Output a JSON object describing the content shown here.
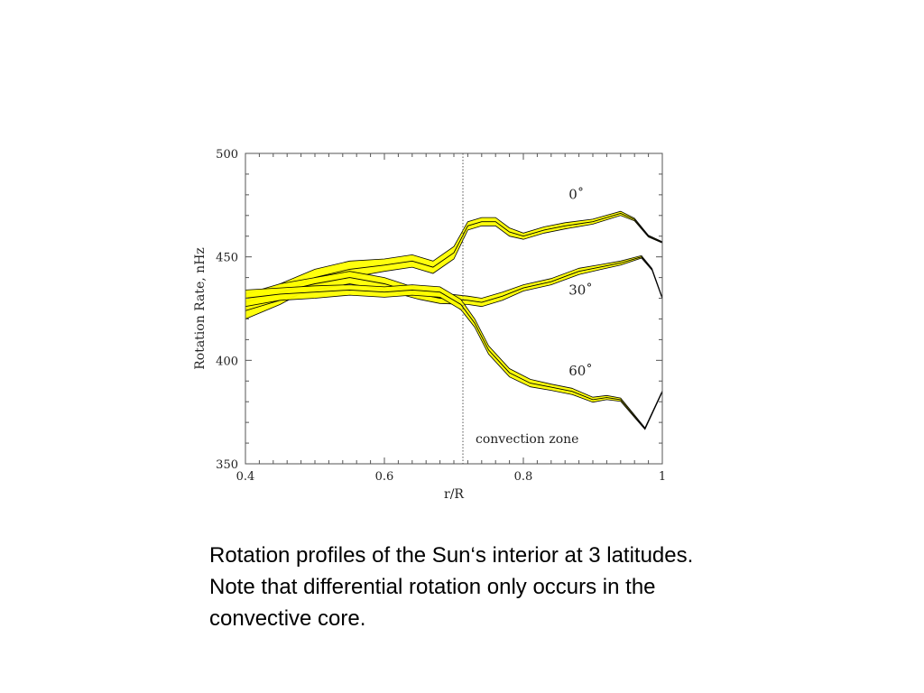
{
  "chart_data": {
    "type": "line",
    "title": "",
    "xlabel": "r/R",
    "ylabel": "Rotation Rate, nHz",
    "xlim": [
      0.4,
      1.0
    ],
    "ylim": [
      350,
      500
    ],
    "xticks": [
      0.4,
      0.6,
      0.8,
      1
    ],
    "xtick_labels": [
      "0.4",
      "0.6",
      "0.8",
      "1"
    ],
    "yticks": [
      350,
      400,
      450,
      500
    ],
    "ytick_labels": [
      "350",
      "400",
      "450",
      "500"
    ],
    "grid": false,
    "band_color": "#ffff00",
    "line_color": "#000000",
    "series": [
      {
        "name": "0˚",
        "x": [
          0.4,
          0.45,
          0.5,
          0.55,
          0.6,
          0.64,
          0.67,
          0.7,
          0.72,
          0.74,
          0.76,
          0.78,
          0.8,
          0.83,
          0.86,
          0.9,
          0.94,
          0.96,
          0.98,
          1.0
        ],
        "y": [
          425,
          432,
          440,
          444,
          446,
          448,
          445,
          452,
          465,
          467,
          467,
          462,
          460,
          463,
          465,
          467,
          471,
          468,
          460,
          457
        ],
        "band": [
          5,
          5,
          4,
          4,
          3,
          3,
          3,
          3,
          2,
          2,
          2,
          2,
          1.5,
          1.5,
          1.5,
          1.2,
          1,
          0.6,
          0.4,
          0.3
        ]
      },
      {
        "name": "30˚",
        "x": [
          0.4,
          0.45,
          0.5,
          0.55,
          0.6,
          0.65,
          0.68,
          0.72,
          0.74,
          0.77,
          0.8,
          0.84,
          0.88,
          0.91,
          0.94,
          0.97,
          0.985,
          1.0
        ],
        "y": [
          428,
          433,
          437,
          440,
          437,
          432,
          430,
          429,
          428,
          431,
          435,
          438,
          443,
          445,
          447,
          450,
          444,
          430
        ],
        "band": [
          4,
          4,
          3,
          3,
          3,
          2.5,
          2.5,
          2,
          2,
          2,
          1.5,
          1.5,
          1.5,
          1.2,
          1,
          0.6,
          0.4,
          0.3
        ]
      },
      {
        "name": "60˚",
        "x": [
          0.4,
          0.45,
          0.5,
          0.55,
          0.6,
          0.64,
          0.68,
          0.71,
          0.73,
          0.75,
          0.78,
          0.81,
          0.84,
          0.87,
          0.9,
          0.92,
          0.94,
          0.96,
          0.975,
          1.0
        ],
        "y": [
          430,
          432,
          433,
          434,
          433,
          434,
          433,
          427,
          418,
          405,
          394,
          389,
          387,
          385,
          381,
          382,
          381,
          373,
          367,
          385
        ],
        "band": [
          4,
          3,
          3,
          2.5,
          2.5,
          2.5,
          2.5,
          2.5,
          2,
          2,
          2,
          1.8,
          1.5,
          1.5,
          1.2,
          1,
          0.8,
          0.6,
          0.4,
          0.3
        ]
      }
    ],
    "vertical_line": {
      "x": 0.713,
      "style": "dotted"
    },
    "annotation": "convection zone"
  },
  "caption": {
    "line1": "Rotation profiles of the Sun‘s interior at  3 latitudes.",
    "line2": "Note that differential rotation only occurs in the",
    "line3": "convective core."
  }
}
